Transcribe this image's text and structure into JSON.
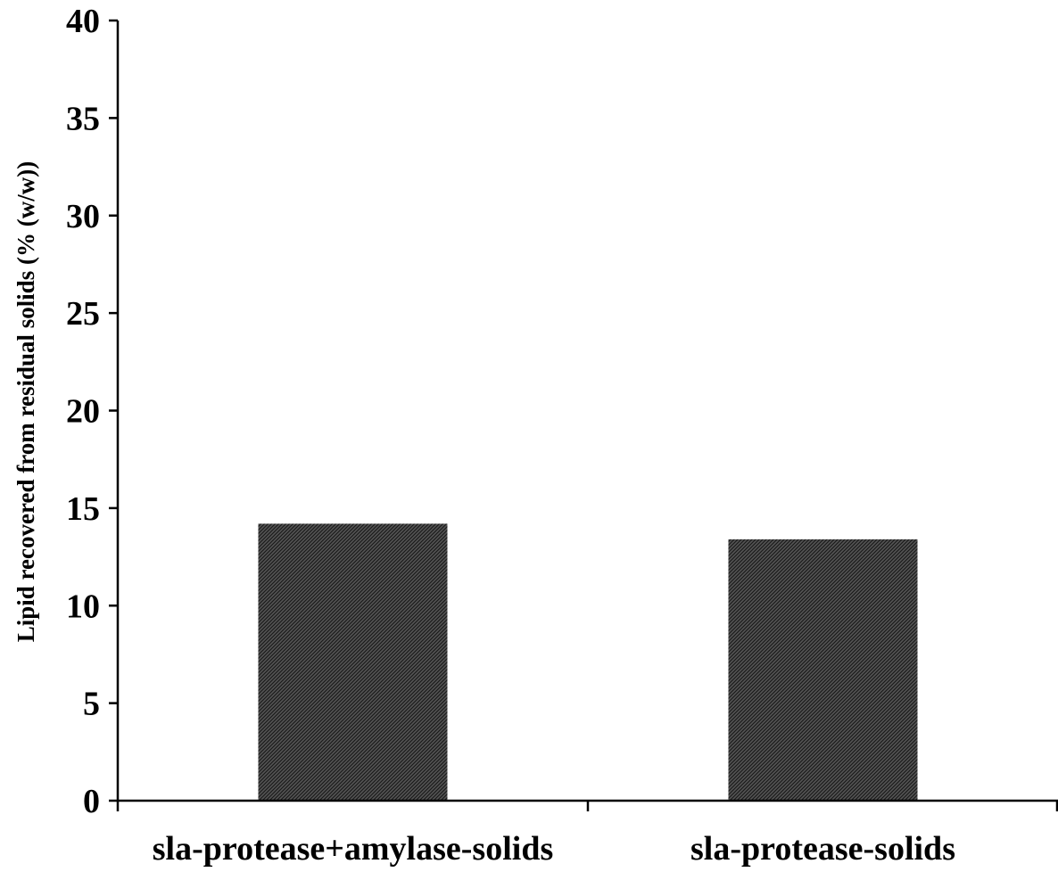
{
  "chart_data": {
    "type": "bar",
    "categories": [
      "sla-protease+amylase-solids",
      "sla-protease-solids"
    ],
    "values": [
      14.2,
      13.4
    ],
    "title": "",
    "xlabel": "",
    "ylabel": "Lipid recovered from residual solids (% (w/w))",
    "ylim": [
      0,
      40
    ],
    "yticks": [
      0,
      5,
      10,
      15,
      20,
      25,
      30,
      35,
      40
    ],
    "grid": false,
    "legend": "none",
    "bar_color": "#3a3a3a"
  }
}
